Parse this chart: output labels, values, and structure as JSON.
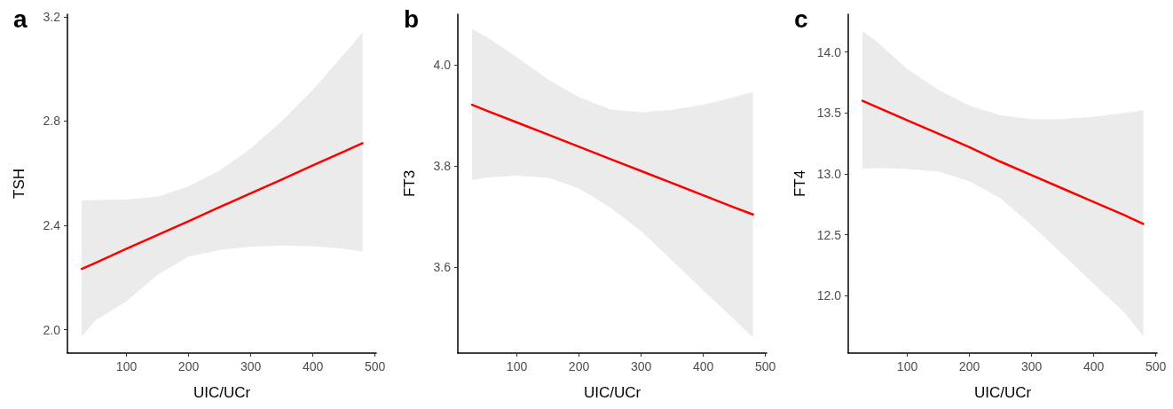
{
  "chart_data": [
    {
      "type": "line",
      "title": "a",
      "xlabel": "UIC/UCr",
      "ylabel": "TSH",
      "x": [
        28,
        50,
        100,
        150,
        200,
        250,
        300,
        350,
        400,
        450,
        480
      ],
      "xlim": [
        5,
        502
      ],
      "xticks": [
        100,
        200,
        300,
        400,
        500
      ],
      "ylim": [
        1.91,
        3.21
      ],
      "yticks": [
        {
          "value": 2.0,
          "label": "2.0"
        },
        2.4,
        2.8,
        3.2
      ],
      "grid": false,
      "marker": "none",
      "line_style": "solid",
      "series": [
        {
          "color": "#ff0000",
          "values": [
            2.233,
            2.256,
            2.31,
            2.363,
            2.416,
            2.47,
            2.523,
            2.576,
            2.63,
            2.683,
            2.715
          ],
          "lower": [
            1.974,
            2.036,
            2.109,
            2.21,
            2.28,
            2.306,
            2.318,
            2.323,
            2.32,
            2.31,
            2.3
          ],
          "upper": [
            2.495,
            2.497,
            2.5,
            2.51,
            2.55,
            2.61,
            2.695,
            2.8,
            2.92,
            3.056,
            3.14
          ]
        }
      ]
    },
    {
      "type": "line",
      "title": "b",
      "xlabel": "UIC/UCr",
      "ylabel": "FT3",
      "x": [
        28,
        50,
        100,
        150,
        200,
        250,
        300,
        350,
        400,
        450,
        480
      ],
      "xlim": [
        5,
        502
      ],
      "xticks": [
        100,
        200,
        300,
        400,
        500
      ],
      "ylim": [
        3.43,
        4.1
      ],
      "yticks": [
        3.6,
        3.8,
        {
          "value": 4.0,
          "label": "4.0"
        }
      ],
      "grid": false,
      "marker": "none",
      "line_style": "solid",
      "series": [
        {
          "color": "#ff0000",
          "values": [
            3.921,
            3.91,
            3.886,
            3.862,
            3.838,
            3.814,
            3.79,
            3.766,
            3.742,
            3.718,
            3.704
          ],
          "lower": [
            3.772,
            3.777,
            3.781,
            3.777,
            3.756,
            3.718,
            3.671,
            3.613,
            3.554,
            3.496,
            3.461
          ],
          "upper": [
            4.07,
            4.056,
            4.015,
            3.971,
            3.936,
            3.912,
            3.906,
            3.911,
            3.921,
            3.936,
            3.946
          ]
        }
      ]
    },
    {
      "type": "line",
      "title": "c",
      "xlabel": "UIC/UCr",
      "ylabel": "FT4",
      "x": [
        28,
        50,
        100,
        150,
        200,
        250,
        300,
        350,
        400,
        450,
        480
      ],
      "xlim": [
        5,
        502
      ],
      "xticks": [
        100,
        200,
        300,
        400,
        500
      ],
      "ylim": [
        11.53,
        14.31
      ],
      "yticks": [
        {
          "value": 12.0,
          "label": "12.0"
        },
        12.5,
        {
          "value": 13.0,
          "label": "13.0"
        },
        13.5,
        {
          "value": 14.0,
          "label": "14.0"
        }
      ],
      "grid": false,
      "marker": "none",
      "line_style": "solid",
      "series": [
        {
          "color": "#ff0000",
          "values": [
            13.6,
            13.55,
            13.44,
            13.33,
            13.22,
            13.1,
            12.99,
            12.88,
            12.77,
            12.66,
            12.59
          ],
          "lower": [
            13.04,
            13.05,
            13.04,
            13.02,
            12.94,
            12.8,
            12.58,
            12.34,
            12.1,
            11.86,
            11.67
          ],
          "upper": [
            14.17,
            14.09,
            13.86,
            13.69,
            13.56,
            13.48,
            13.45,
            13.45,
            13.47,
            13.5,
            13.52
          ]
        }
      ]
    }
  ]
}
